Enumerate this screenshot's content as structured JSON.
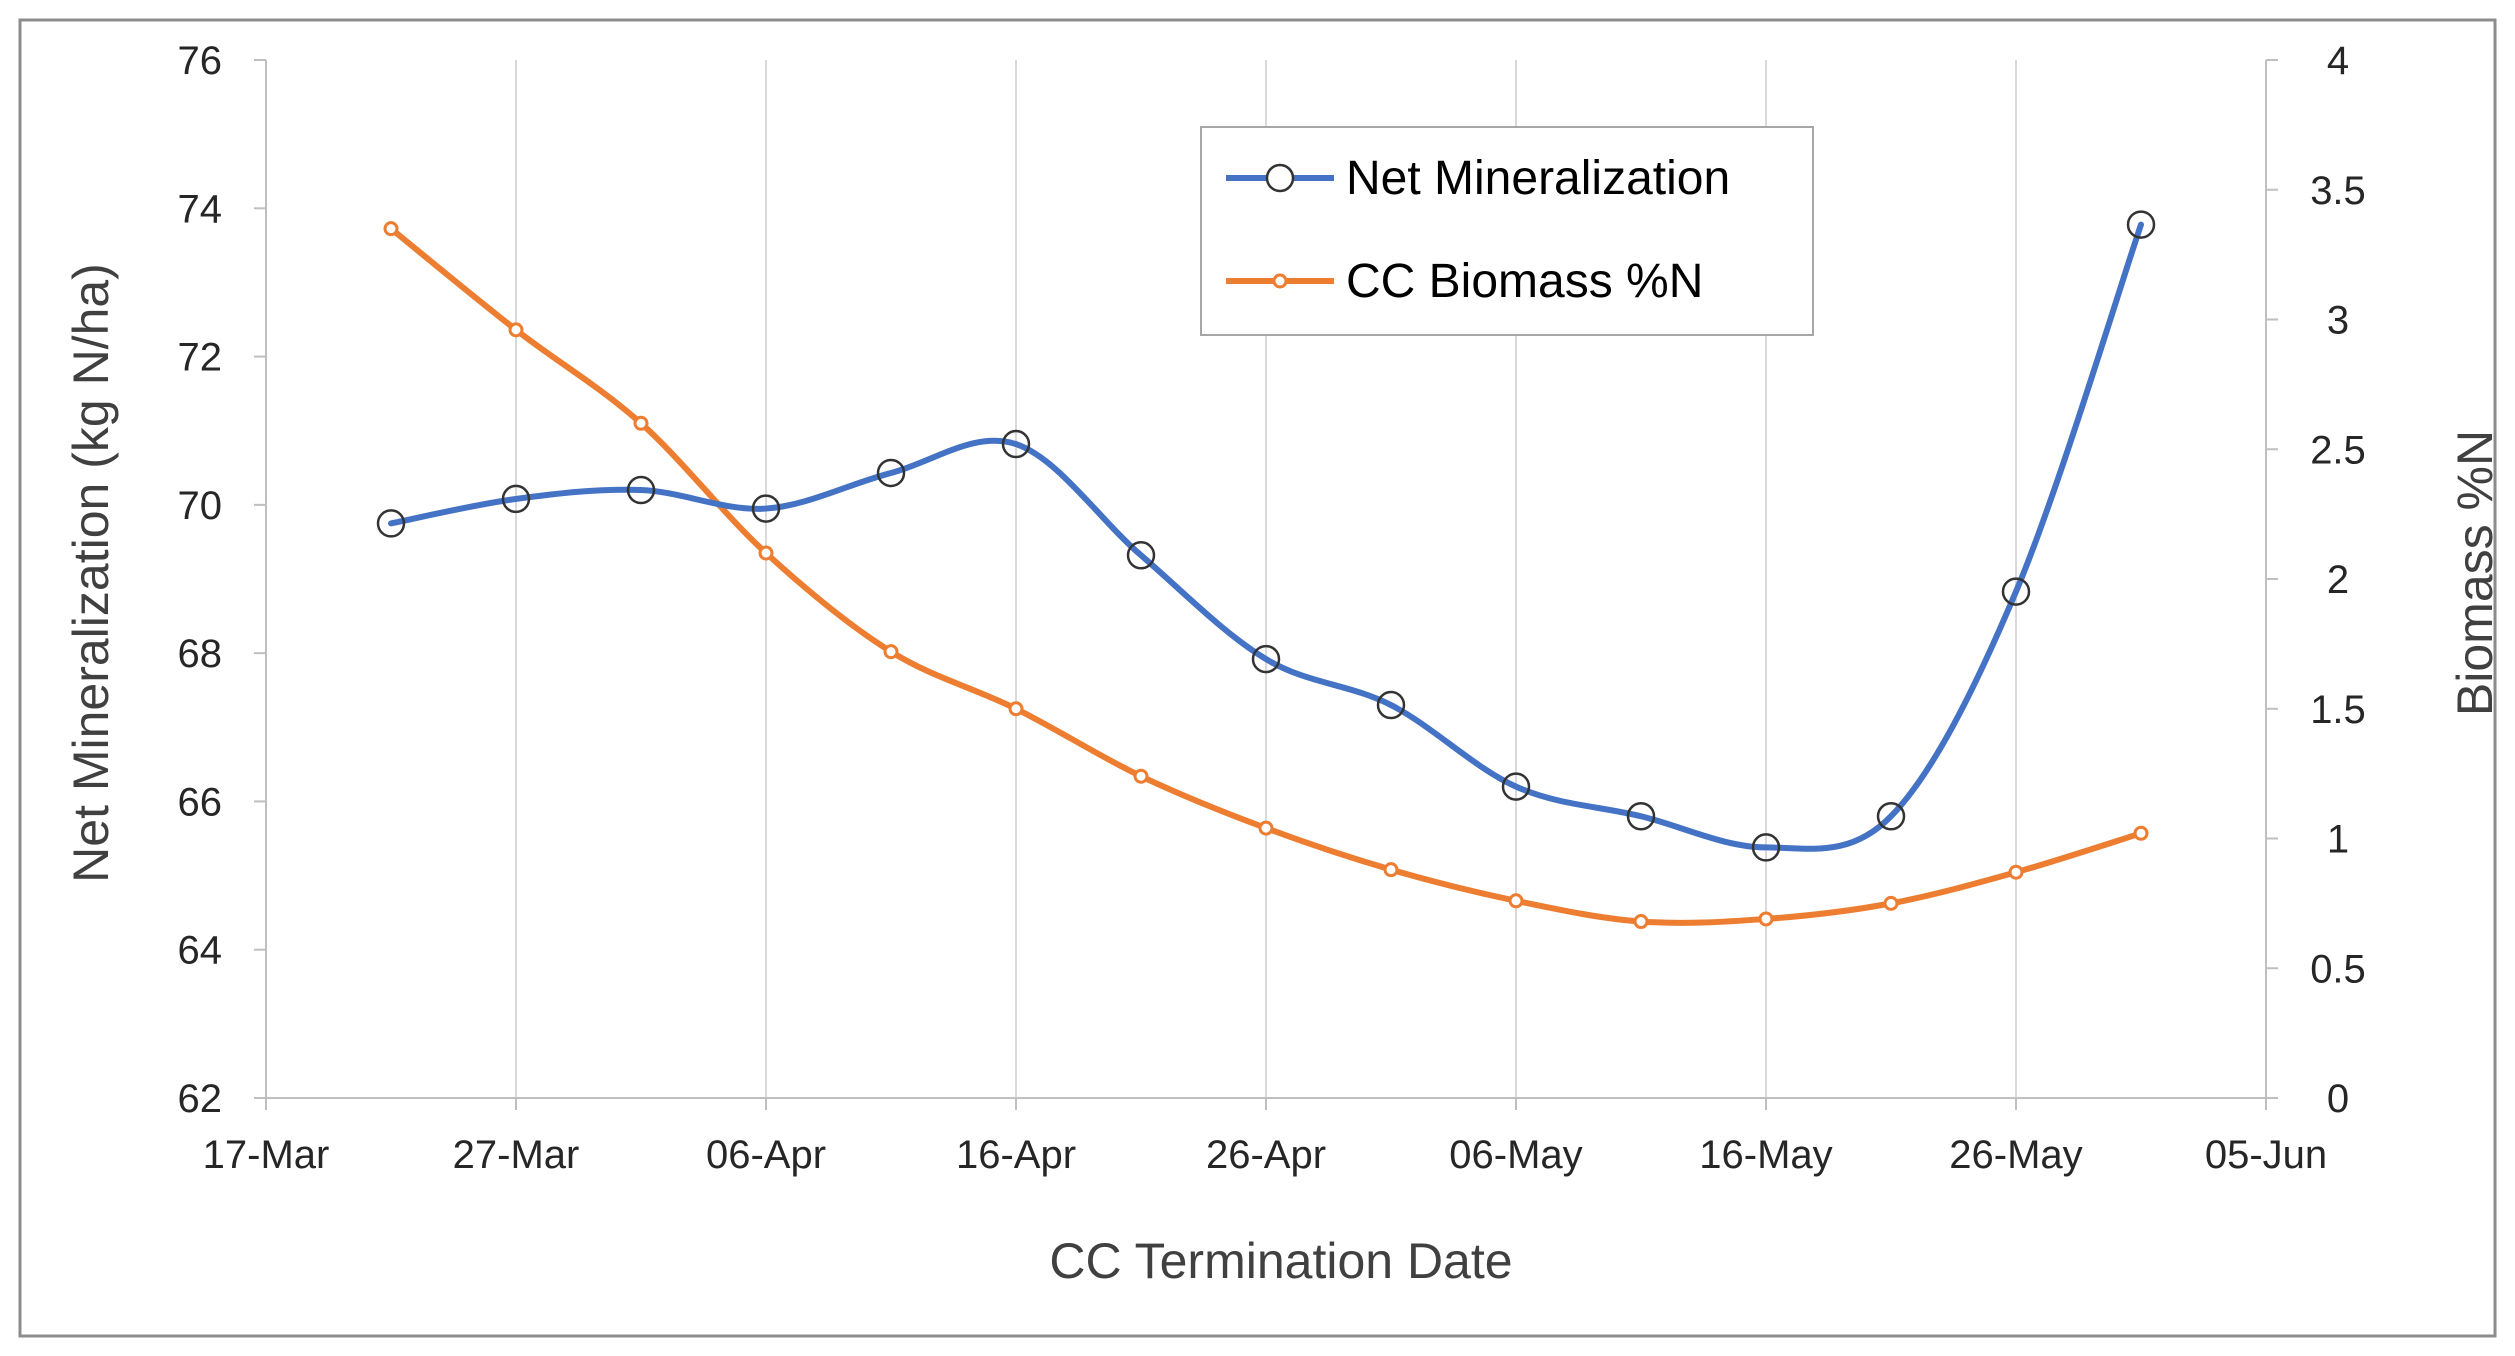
{
  "chart_data": {
    "type": "line",
    "title": "",
    "xlabel": "CC Termination Date",
    "ylabel": "Net Mineralization  (kg N/ha)",
    "y2label": "Biomass %N",
    "x_ticks": [
      "17-Mar",
      "27-Mar",
      "06-Apr",
      "16-Apr",
      "26-Apr",
      "06-May",
      "16-May",
      "26-May",
      "05-Jun"
    ],
    "xlim": [
      0,
      80
    ],
    "ylim": [
      62,
      76
    ],
    "y_ticks": [
      "62",
      "64",
      "66",
      "68",
      "70",
      "72",
      "74",
      "76"
    ],
    "y2lim": [
      0,
      4
    ],
    "y2_ticks": [
      "0",
      "0.5",
      "1",
      "1.5",
      "2",
      "2.5",
      "3",
      "3.5",
      "4"
    ],
    "grid": "vertical",
    "legend_position": "top-center",
    "series": [
      {
        "name": "Net Mineralization",
        "axis": "left",
        "color": "#4472c4",
        "marker": "open-circle",
        "x": [
          5,
          10,
          15,
          20,
          25,
          30,
          35,
          40,
          45,
          50,
          55,
          60,
          65,
          70,
          75
        ],
        "values": [
          69.75,
          70.08,
          70.2,
          69.95,
          70.43,
          70.82,
          69.32,
          67.92,
          67.3,
          66.2,
          65.8,
          65.38,
          65.8,
          68.83,
          73.78
        ]
      },
      {
        "name": "CC Biomass %N",
        "axis": "right",
        "color": "#ed7d31",
        "marker": "small-circle",
        "x": [
          5,
          10,
          15,
          20,
          25,
          30,
          35,
          40,
          45,
          50,
          55,
          60,
          65,
          70,
          75
        ],
        "values": [
          3.35,
          2.96,
          2.6,
          2.1,
          1.72,
          1.5,
          1.24,
          1.04,
          0.88,
          0.76,
          0.68,
          0.69,
          0.75,
          0.87,
          1.02
        ]
      }
    ]
  }
}
